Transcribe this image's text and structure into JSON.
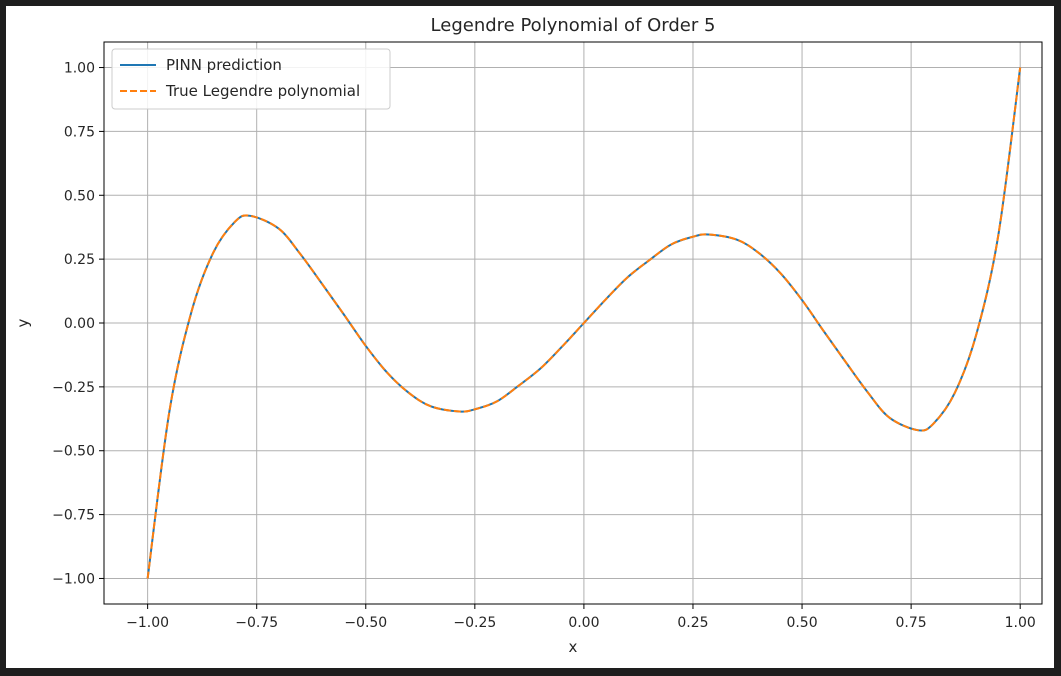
{
  "chart_data": {
    "type": "line",
    "title": "Legendre Polynomial of Order 5",
    "xlabel": "x",
    "ylabel": "y",
    "xlim": [
      -1.1,
      1.05
    ],
    "ylim": [
      -1.1,
      1.1
    ],
    "grid": true,
    "legend_position": "top-left",
    "x_ticks": [
      -1.0,
      -0.75,
      -0.5,
      -0.25,
      0.0,
      0.25,
      0.5,
      0.75,
      1.0
    ],
    "x_tick_labels": [
      "−1.00",
      "−0.75",
      "−0.50",
      "−0.25",
      "0.00",
      "0.25",
      "0.50",
      "0.75",
      "1.00"
    ],
    "y_ticks": [
      1.0,
      0.75,
      0.5,
      0.25,
      0.0,
      -0.25,
      -0.5,
      -0.75,
      -1.0
    ],
    "y_tick_labels": [
      "1.00",
      "0.75",
      "0.50",
      "0.25",
      "0.00",
      "−0.25",
      "−0.50",
      "−0.75",
      "−1.00"
    ],
    "x": [
      -1.0,
      -0.95,
      -0.9,
      -0.85,
      -0.8,
      -0.765,
      -0.7,
      -0.65,
      -0.6,
      -0.55,
      -0.5,
      -0.45,
      -0.4,
      -0.35,
      -0.285,
      -0.25,
      -0.2,
      -0.15,
      -0.1,
      -0.05,
      0.0,
      0.05,
      0.1,
      0.15,
      0.2,
      0.25,
      0.285,
      0.35,
      0.4,
      0.45,
      0.5,
      0.55,
      0.6,
      0.65,
      0.7,
      0.765,
      0.8,
      0.85,
      0.9,
      0.95,
      1.0
    ],
    "series": [
      {
        "name": "PINN prediction",
        "color": "#1f77b4",
        "style": "solid",
        "values": [
          -1.0,
          -0.3451,
          0.0411,
          0.2739,
          0.396,
          0.4196,
          0.3701,
          0.2699,
          0.1526,
          0.0328,
          -0.0898,
          -0.1961,
          -0.2752,
          -0.3267,
          -0.3466,
          -0.3379,
          -0.3075,
          -0.2458,
          -0.1788,
          -0.0924,
          0.0,
          0.0924,
          0.1788,
          0.2458,
          0.3075,
          0.3379,
          0.3466,
          0.3267,
          0.2752,
          0.1961,
          0.0898,
          -0.0328,
          -0.1526,
          -0.2699,
          -0.3701,
          -0.4196,
          -0.396,
          -0.2739,
          -0.0411,
          0.3451,
          1.0
        ]
      },
      {
        "name": "True Legendre polynomial",
        "color": "#ff7f0e",
        "style": "dashed",
        "values": [
          -1.0,
          -0.3451,
          0.0411,
          0.2739,
          0.396,
          0.4196,
          0.3701,
          0.2699,
          0.1526,
          0.0328,
          -0.0898,
          -0.1961,
          -0.2752,
          -0.3267,
          -0.3466,
          -0.3379,
          -0.3075,
          -0.2458,
          -0.1788,
          -0.0924,
          0.0,
          0.0924,
          0.1788,
          0.2458,
          0.3075,
          0.3379,
          0.3466,
          0.3267,
          0.2752,
          0.1961,
          0.0898,
          -0.0328,
          -0.1526,
          -0.2699,
          -0.3701,
          -0.4196,
          -0.396,
          -0.2739,
          -0.0411,
          0.3451,
          1.0
        ]
      }
    ]
  },
  "colors": {
    "axes": "#000000",
    "grid": "#b0b0b0",
    "text": "#262626"
  }
}
